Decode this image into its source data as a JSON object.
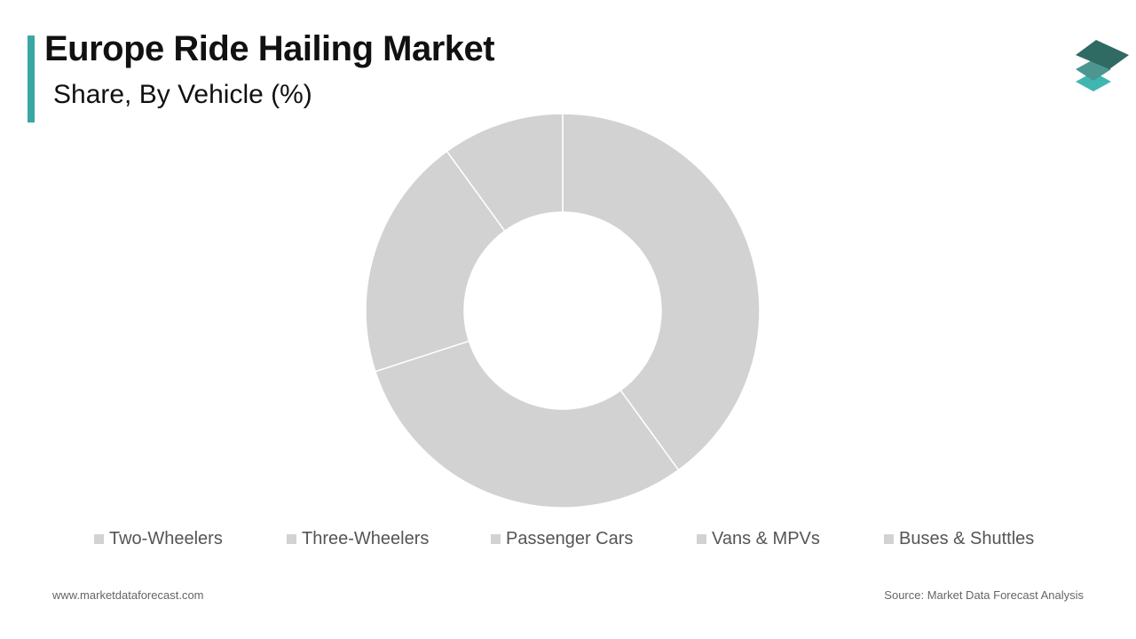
{
  "header": {
    "title": "Europe Ride Hailing Market",
    "subtitle": "Share, By Vehicle (%)"
  },
  "footer": {
    "website": "www.marketdataforecast.com",
    "source": "Source: Market Data Forecast Analysis"
  },
  "logo_colors": [
    "#2f6b63",
    "#4c968f",
    "#3fb7b0"
  ],
  "chart_data": {
    "type": "pie",
    "donut": true,
    "title": "Europe Ride Hailing Market",
    "subtitle": "Share, By Vehicle (%)",
    "categories": [
      "Two-Wheelers",
      "Three-Wheelers",
      "Passenger Cars",
      "Vans & MPVs",
      "Buses & Shuttles"
    ],
    "values": [
      40,
      30,
      20,
      10,
      0
    ],
    "colors": [
      "#d3d2d3",
      "#d3d2d3",
      "#d3d2d3",
      "#d3d2d3",
      "#d3d2d3"
    ],
    "legend_position": "bottom"
  }
}
